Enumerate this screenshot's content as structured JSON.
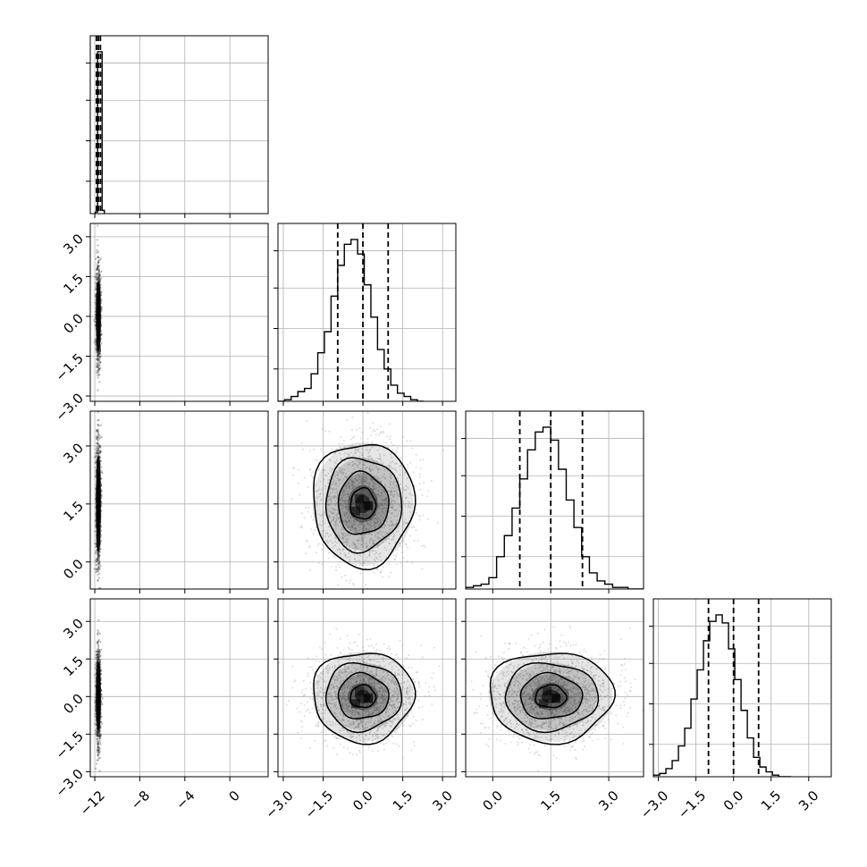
{
  "chart_data": {
    "type": "corner",
    "parameters": 4,
    "panel_ranges": [
      [
        -12.4,
        3.4
      ],
      [
        -3.2,
        3.5
      ],
      [
        -0.7,
        3.9
      ],
      [
        -3.2,
        3.9
      ]
    ],
    "ticks": [
      {
        "values": [
          -12,
          -8,
          -4,
          0
        ],
        "labels": [
          "−12",
          "−8",
          "−4",
          "0"
        ]
      },
      {
        "values": [
          -3,
          -1.5,
          0,
          1.5,
          3
        ],
        "labels": [
          "−3.0",
          "−1.5",
          "0.0",
          "1.5",
          "3.0"
        ]
      },
      {
        "values": [
          0,
          1.5,
          3
        ],
        "labels": [
          "0.0",
          "1.5",
          "3.0"
        ]
      },
      {
        "values": [
          -3,
          -1.5,
          0,
          1.5,
          3
        ],
        "labels": [
          "−3.0",
          "−1.5",
          "0.0",
          "1.5",
          "3.0"
        ]
      }
    ],
    "grid": true,
    "histograms": [
      {
        "quantiles": [
          -11.85,
          -11.68,
          -11.5
        ],
        "bins_start": -11.95,
        "bins_step": 0.2,
        "counts": [
          0.01,
          1.0,
          1.0,
          0.02
        ]
      },
      {
        "quantiles": [
          -0.95,
          0.0,
          0.95
        ],
        "bins_start": -3.2,
        "bins_step": 0.25,
        "counts": [
          0.0,
          0.01,
          0.03,
          0.06,
          0.08,
          0.17,
          0.3,
          0.43,
          0.65,
          0.84,
          0.97,
          1.0,
          0.91,
          0.72,
          0.52,
          0.32,
          0.2,
          0.1,
          0.05,
          0.03,
          0.01,
          0.0
        ]
      },
      {
        "quantiles": [
          0.7,
          1.5,
          2.32
        ],
        "bins_start": -0.7,
        "bins_step": 0.2,
        "counts": [
          0.01,
          0.02,
          0.03,
          0.07,
          0.2,
          0.33,
          0.5,
          0.68,
          0.86,
          0.97,
          1.0,
          0.92,
          0.74,
          0.55,
          0.38,
          0.2,
          0.1,
          0.05,
          0.03,
          0.01,
          0.01,
          0.0,
          0.0
        ]
      },
      {
        "quantiles": [
          -1.0,
          0.0,
          1.0
        ],
        "bins_start": -3.2,
        "bins_step": 0.25,
        "counts": [
          0.01,
          0.02,
          0.05,
          0.1,
          0.19,
          0.3,
          0.48,
          0.66,
          0.84,
          0.96,
          1.0,
          0.95,
          0.79,
          0.6,
          0.41,
          0.24,
          0.12,
          0.06,
          0.03,
          0.01,
          0.0,
          0.0
        ]
      }
    ],
    "joint_distributions": [
      {
        "x_param": 0,
        "y_param": 1,
        "center": [
          -11.68,
          0.0
        ],
        "sigma": [
          0.1,
          0.85
        ]
      },
      {
        "x_param": 0,
        "y_param": 2,
        "center": [
          -11.68,
          1.5
        ],
        "sigma": [
          0.1,
          0.8
        ]
      },
      {
        "x_param": 0,
        "y_param": 3,
        "center": [
          -11.68,
          0.0
        ],
        "sigma": [
          0.1,
          0.9
        ]
      },
      {
        "x_param": 1,
        "y_param": 2,
        "center": [
          0.0,
          1.5
        ],
        "sigma": [
          0.95,
          0.8
        ]
      },
      {
        "x_param": 1,
        "y_param": 3,
        "center": [
          0.0,
          0.0
        ],
        "sigma": [
          0.95,
          0.9
        ]
      },
      {
        "x_param": 2,
        "y_param": 3,
        "center": [
          1.5,
          0.0
        ],
        "sigma": [
          0.8,
          0.9
        ]
      }
    ],
    "contour_levels_sigma": [
      0.5,
      1.0,
      1.5,
      2.0
    ]
  }
}
